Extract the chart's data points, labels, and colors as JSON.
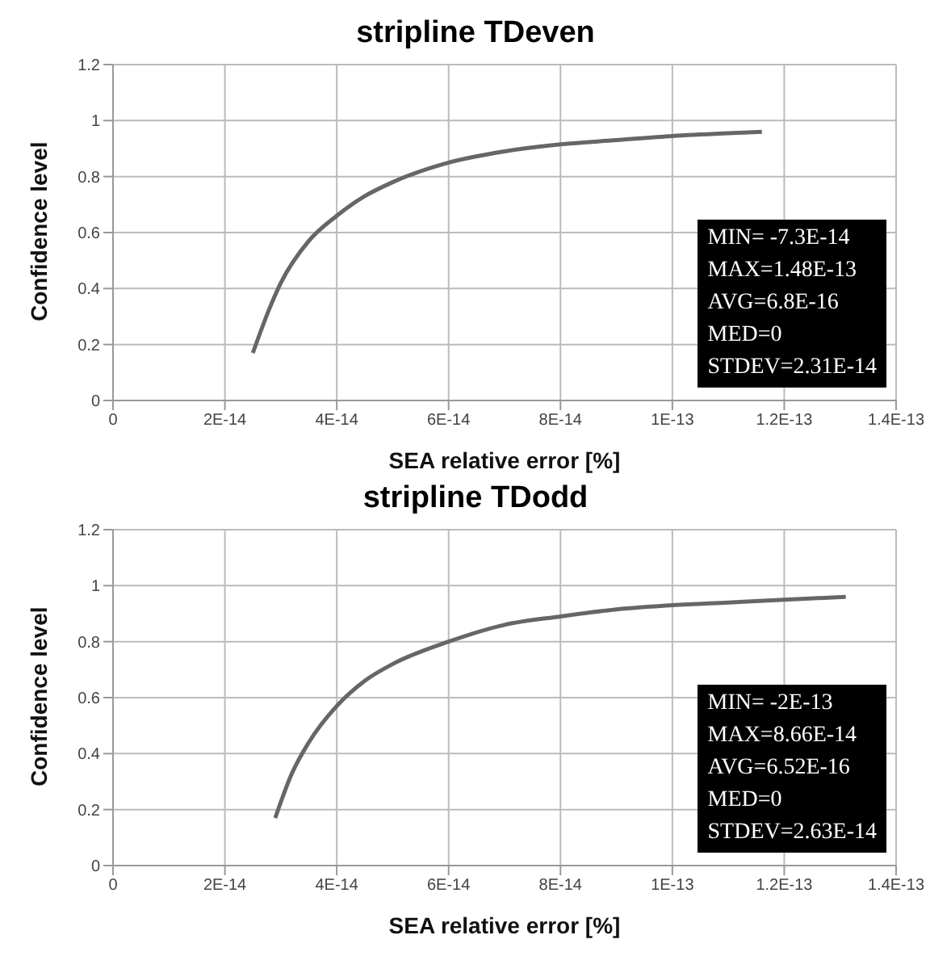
{
  "chart_data": [
    {
      "type": "line",
      "title": "stripline TDeven",
      "xlabel": "SEA relative error [%]",
      "ylabel": "Confidence level",
      "grid": true,
      "marker": "none",
      "line_style": "solid",
      "xlim": [
        0,
        1.4e-13
      ],
      "xticks": [
        0,
        {
          "value": 2e-14,
          "label": "2E-14"
        },
        {
          "value": 4e-14,
          "label": "4E-14"
        },
        {
          "value": 6e-14,
          "label": "6E-14"
        },
        {
          "value": 8e-14,
          "label": "8E-14"
        },
        {
          "value": 1e-13,
          "label": "1E-13"
        },
        {
          "value": 1.2e-13,
          "label": "1.2E-13"
        },
        {
          "value": 1.4e-13,
          "label": "1.4E-13"
        }
      ],
      "ylim": [
        0,
        1.2
      ],
      "yticks": [
        0,
        0.2,
        0.4,
        0.6,
        0.8,
        1,
        1.2
      ],
      "series": [
        {
          "color": "#666666",
          "x": [
            2.5e-14,
            2.8e-14,
            3e-14,
            3.5e-14,
            4e-14,
            4.5e-14,
            5e-14,
            6e-14,
            7e-14,
            8e-14,
            9e-14,
            1e-13,
            1.1e-13,
            1.16e-13
          ],
          "values": [
            0.17,
            0.33,
            0.42,
            0.57,
            0.66,
            0.73,
            0.78,
            0.85,
            0.89,
            0.915,
            0.93,
            0.945,
            0.955,
            0.96
          ]
        }
      ],
      "annotations": [
        "MIN= -7.3E-14",
        "MAX=1.48E-13",
        "AVG=6.8E-16",
        "MED=0",
        "STDEV=2.31E-14"
      ]
    },
    {
      "type": "line",
      "title": "stripline TDodd",
      "xlabel": "SEA relative error [%]",
      "ylabel": "Confidence level",
      "grid": true,
      "marker": "none",
      "line_style": "solid",
      "xlim": [
        0,
        1.4e-13
      ],
      "xticks": [
        0,
        {
          "value": 2e-14,
          "label": "2E-14"
        },
        {
          "value": 4e-14,
          "label": "4E-14"
        },
        {
          "value": 6e-14,
          "label": "6E-14"
        },
        {
          "value": 8e-14,
          "label": "8E-14"
        },
        {
          "value": 1e-13,
          "label": "1E-13"
        },
        {
          "value": 1.2e-13,
          "label": "1.2E-13"
        },
        {
          "value": 1.4e-13,
          "label": "1.4E-13"
        }
      ],
      "ylim": [
        0,
        1.2
      ],
      "yticks": [
        0,
        0.2,
        0.4,
        0.6,
        0.8,
        1,
        1.2
      ],
      "series": [
        {
          "color": "#666666",
          "x": [
            2.9e-14,
            3.2e-14,
            3.5e-14,
            4e-14,
            4.5e-14,
            5e-14,
            6e-14,
            7e-14,
            8e-14,
            9e-14,
            1e-13,
            1.1e-13,
            1.2e-13,
            1.31e-13
          ],
          "values": [
            0.17,
            0.33,
            0.44,
            0.57,
            0.66,
            0.72,
            0.8,
            0.86,
            0.89,
            0.915,
            0.93,
            0.94,
            0.95,
            0.96
          ]
        }
      ],
      "annotations": [
        "MIN= -2E-13",
        "MAX=8.66E-14",
        "AVG=6.52E-16",
        "MED=0",
        "STDEV=2.63E-14"
      ]
    }
  ]
}
